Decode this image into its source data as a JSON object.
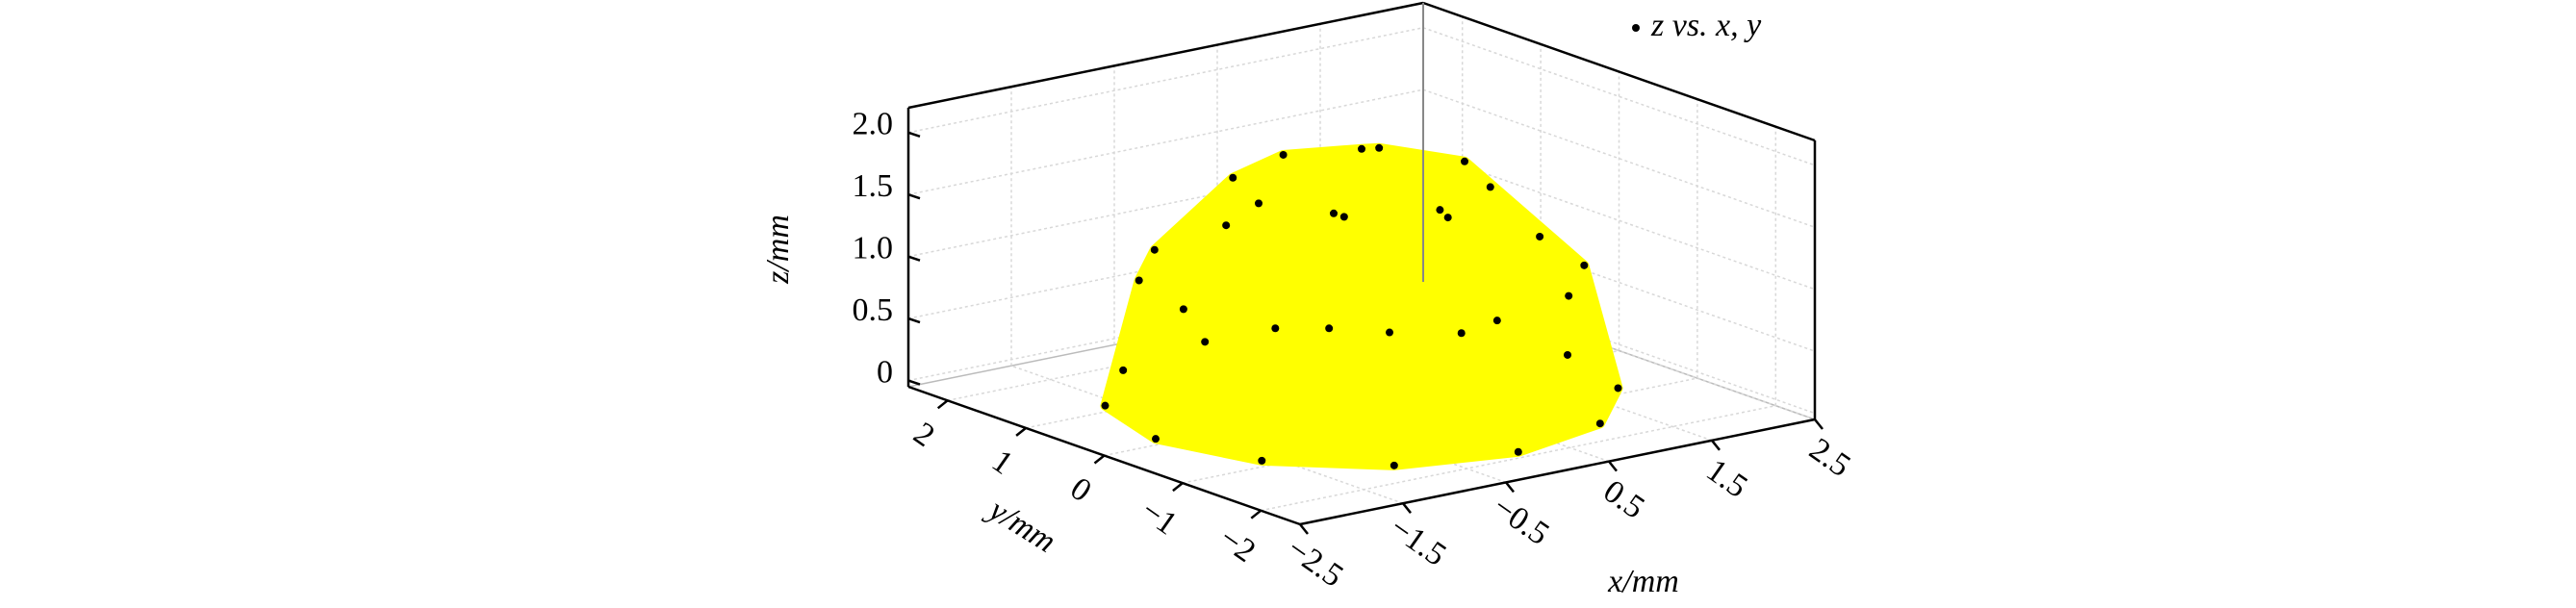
{
  "chart_data": {
    "type": "scatter3d",
    "legend": "z vs. x, y",
    "legend_position": "upper right",
    "xlabel": "x/mm",
    "ylabel": "y/mm",
    "zlabel": "z/mm",
    "marker_color": "#000000",
    "surface_color": "#ffff00",
    "grid": true,
    "x": [
      2,
      1.73,
      1,
      0,
      -1,
      -1.73,
      -2,
      -1.73,
      -1,
      0,
      1,
      1.73,
      1.73,
      1.5,
      0.87,
      0,
      -0.87,
      -1.5,
      -1.73,
      -1.5,
      -0.87,
      0,
      0.87,
      1.5,
      1,
      0.71,
      0,
      -0.71,
      -1,
      -0.71,
      0,
      0.71,
      0
    ],
    "y": [
      0,
      1,
      1.73,
      2,
      1.73,
      1,
      0,
      -1,
      -1.73,
      -2,
      -1.73,
      -1,
      0,
      0.87,
      1.5,
      1.73,
      1.5,
      0.87,
      0,
      -0.87,
      -1.5,
      -1.73,
      -1.5,
      -0.87,
      0,
      0.71,
      1,
      0.71,
      0,
      -0.71,
      -1,
      -0.71,
      0
    ],
    "z": [
      0,
      0,
      0,
      0,
      0,
      0,
      0,
      0,
      0,
      0,
      0,
      0,
      1,
      1,
      1,
      1,
      1,
      1,
      1,
      1,
      1,
      1,
      1,
      1,
      1.73,
      1.73,
      1.73,
      1.73,
      1.73,
      1.73,
      1.73,
      1.73,
      2
    ],
    "xlim": [
      -2.5,
      2.5
    ],
    "ylim": [
      -2.5,
      2.5
    ],
    "zlim": [
      -0.05,
      2.2
    ],
    "xticks": [
      {
        "value": -2.5,
        "label": "−2.5"
      },
      {
        "value": -1.5,
        "label": "−1.5"
      },
      {
        "value": -0.5,
        "label": "−0.5"
      },
      0.5,
      1.5,
      2.5
    ],
    "yticks": [
      {
        "value": -2,
        "label": "−2"
      },
      {
        "value": -1,
        "label": "−1"
      },
      0,
      1,
      2
    ],
    "zticks": [
      0,
      0.5,
      {
        "value": 1,
        "label": "1.0"
      },
      1.5,
      {
        "value": 2,
        "label": "2.0"
      }
    ]
  }
}
